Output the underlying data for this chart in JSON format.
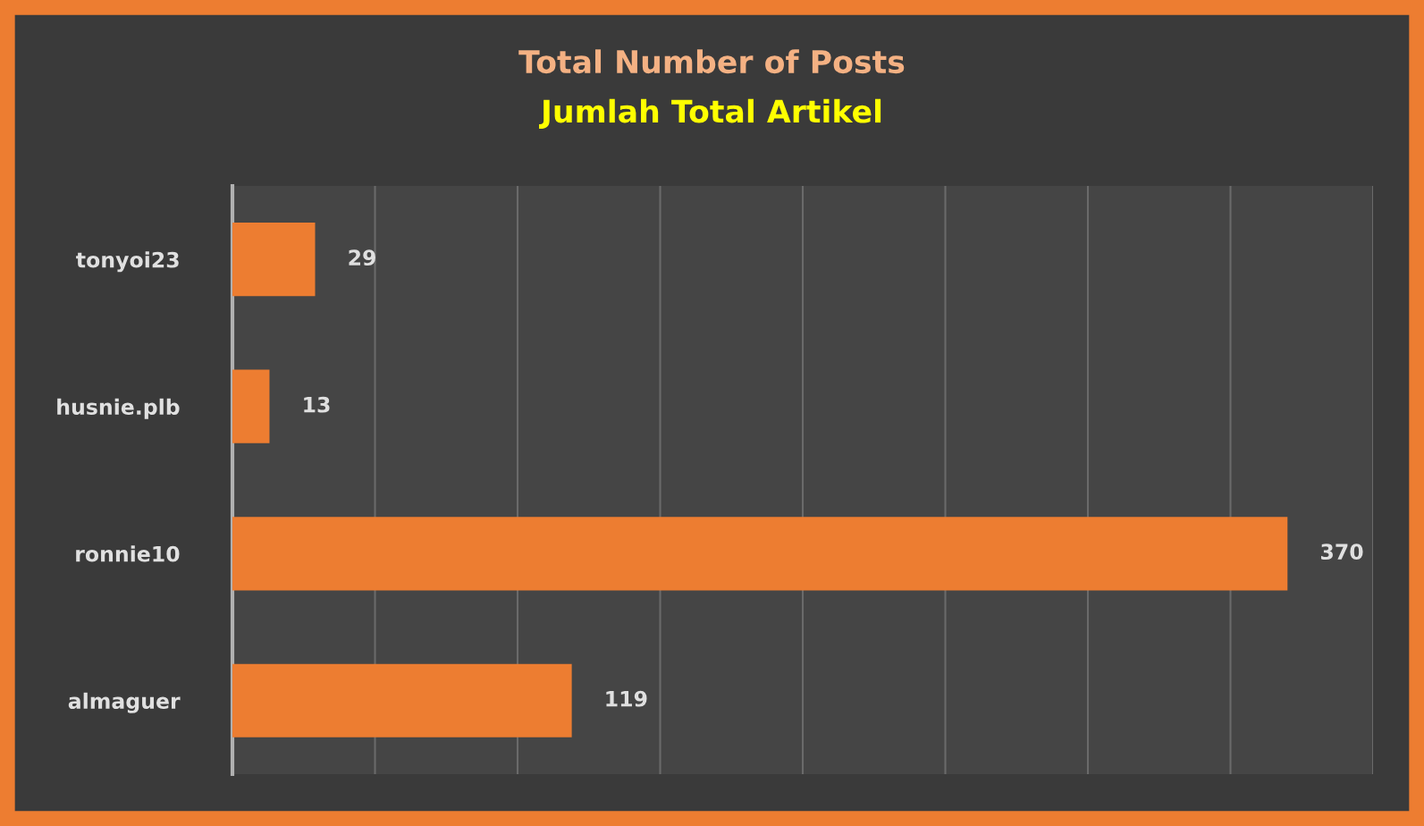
{
  "chart_data": {
    "type": "bar",
    "orientation": "horizontal",
    "title": "Total Number of Posts",
    "subtitle": "Jumlah Total Artikel",
    "categories": [
      "tonyoi23",
      "husnie.plb",
      "ronnie10",
      "almaguer"
    ],
    "values": [
      29,
      13,
      370,
      119
    ],
    "color": "#ed7d31",
    "data_labels": true,
    "xlim": [
      0,
      400
    ],
    "xticks": [
      {
        "value": 0,
        "label": null
      },
      {
        "value": 50,
        "label": null
      },
      {
        "value": 100,
        "label": null
      },
      {
        "value": 150,
        "label": null
      },
      {
        "value": 200,
        "label": null
      },
      {
        "value": 250,
        "label": null
      },
      {
        "value": 300,
        "label": null
      },
      {
        "value": 350,
        "label": null
      },
      {
        "value": 400,
        "label": null
      }
    ],
    "grid": "x",
    "tick_labels": "y"
  }
}
